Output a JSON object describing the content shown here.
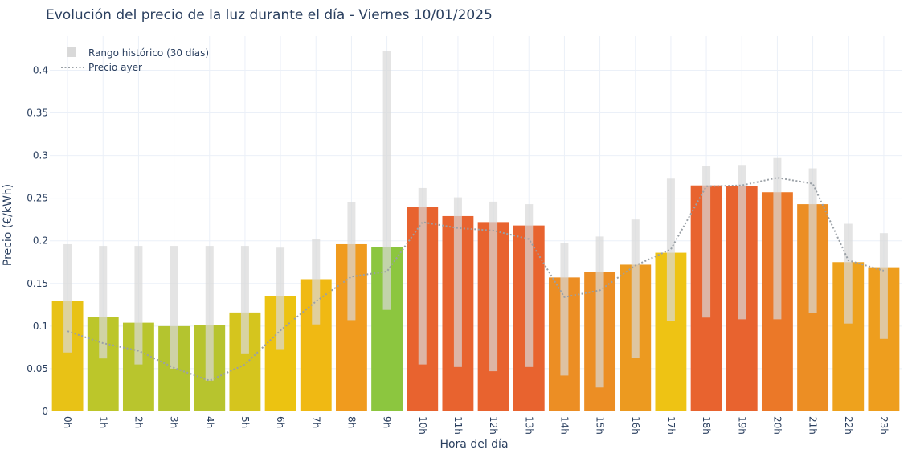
{
  "chart_data": {
    "type": "bar",
    "title": "Evolución del precio de la luz durante el día - Viernes 10/01/2025",
    "xlabel": "Hora del día",
    "ylabel": "Precio (€/kWh)",
    "ylim": [
      0,
      0.44
    ],
    "yticks": [
      0,
      0.05,
      0.1,
      0.15,
      0.2,
      0.25,
      0.3,
      0.35,
      0.4
    ],
    "ytick_labels": [
      "0",
      "0.05",
      "0.1",
      "0.15",
      "0.2",
      "0.25",
      "0.3",
      "0.35",
      "0.4"
    ],
    "categories": [
      "0h",
      "1h",
      "2h",
      "3h",
      "4h",
      "5h",
      "6h",
      "7h",
      "8h",
      "9h",
      "10h",
      "11h",
      "12h",
      "13h",
      "14h",
      "15h",
      "16h",
      "17h",
      "18h",
      "19h",
      "20h",
      "21h",
      "22h",
      "23h"
    ],
    "grid": true,
    "legend_position": "top-left",
    "series": [
      {
        "type": "bar",
        "values": [
          0.13,
          0.111,
          0.104,
          0.1,
          0.101,
          0.116,
          0.135,
          0.155,
          0.196,
          0.193,
          0.24,
          0.229,
          0.222,
          0.218,
          0.157,
          0.163,
          0.172,
          0.186,
          0.265,
          0.264,
          0.257,
          0.243,
          0.175,
          0.169
        ],
        "colors": [
          "#e8c216",
          "#bcc62a",
          "#b9c52d",
          "#b4c42f",
          "#b7c42e",
          "#d5c51e",
          "#ecc311",
          "#f0b913",
          "#f09b1e",
          "#8cc63f",
          "#e8632f",
          "#e8632f",
          "#e8632f",
          "#e8632f",
          "#ec8e24",
          "#ec8e24",
          "#ec9a20",
          "#eec314",
          "#e8632f",
          "#e8632f",
          "#eb7828",
          "#ec8e24",
          "#eea21d",
          "#ee9e1e"
        ]
      },
      {
        "name": "Rango histórico (30 días)",
        "type": "range",
        "low": [
          0.069,
          0.062,
          0.055,
          0.05,
          0.036,
          0.068,
          0.073,
          0.102,
          0.107,
          0.119,
          0.055,
          0.052,
          0.047,
          0.052,
          0.042,
          0.028,
          0.063,
          0.106,
          0.11,
          0.108,
          0.108,
          0.115,
          0.103,
          0.085
        ],
        "high": [
          0.196,
          0.194,
          0.194,
          0.194,
          0.194,
          0.194,
          0.192,
          0.202,
          0.245,
          0.423,
          0.262,
          0.251,
          0.246,
          0.243,
          0.197,
          0.205,
          0.225,
          0.273,
          0.288,
          0.289,
          0.297,
          0.285,
          0.22,
          0.209
        ],
        "color": "#d9d9d9"
      },
      {
        "name": "Precio ayer",
        "type": "line",
        "style": "dotted",
        "values": [
          0.094,
          0.08,
          0.071,
          0.051,
          0.036,
          0.055,
          0.095,
          0.129,
          0.158,
          0.164,
          0.222,
          0.215,
          0.212,
          0.202,
          0.134,
          0.142,
          0.171,
          0.19,
          0.264,
          0.265,
          0.274,
          0.267,
          0.177,
          0.165
        ],
        "color": "#9aa0a6"
      }
    ]
  }
}
